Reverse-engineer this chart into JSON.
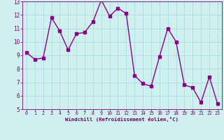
{
  "x": [
    0,
    1,
    2,
    3,
    4,
    5,
    6,
    7,
    8,
    9,
    10,
    11,
    12,
    13,
    14,
    15,
    16,
    17,
    18,
    19,
    20,
    21,
    22,
    23
  ],
  "y": [
    9.2,
    8.7,
    8.8,
    11.8,
    10.8,
    9.4,
    10.6,
    10.7,
    11.5,
    13.1,
    11.9,
    12.5,
    12.1,
    7.5,
    6.9,
    6.7,
    8.9,
    11.0,
    10.0,
    6.8,
    6.6,
    5.5,
    7.4,
    5.4
  ],
  "line_color": "#880088",
  "marker": "s",
  "marker_size": 2.5,
  "linewidth": 1.0,
  "xlabel": "Windchill (Refroidissement éolien,°C)",
  "xlim": [
    -0.5,
    23.5
  ],
  "ylim": [
    5,
    13
  ],
  "yticks": [
    5,
    6,
    7,
    8,
    9,
    10,
    11,
    12,
    13
  ],
  "xticks": [
    0,
    1,
    2,
    3,
    4,
    5,
    6,
    7,
    8,
    9,
    10,
    11,
    12,
    13,
    14,
    15,
    16,
    17,
    18,
    19,
    20,
    21,
    22,
    23
  ],
  "bg_color": "#cff0ee",
  "grid_color": "#aadddd",
  "tick_color": "#770077",
  "label_color": "#660066"
}
